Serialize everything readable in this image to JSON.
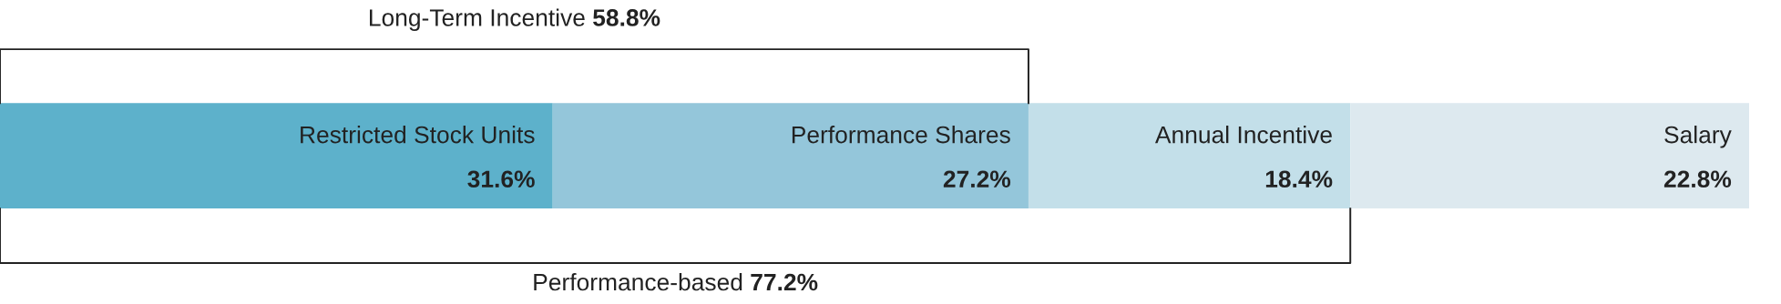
{
  "chart_data": {
    "type": "bar",
    "orientation": "horizontal",
    "stacked": true,
    "categories": [
      null
    ],
    "series": [
      {
        "name": "Restricted Stock Units",
        "color": "#5db1cb",
        "values": [
          31.6
        ],
        "value_labels": [
          "31.6%"
        ]
      },
      {
        "name": "Performance Shares",
        "color": "#94c6da",
        "values": [
          27.2
        ],
        "value_labels": [
          "27.2%"
        ]
      },
      {
        "name": "Annual Incentive",
        "color": "#c3dfe9",
        "values": [
          18.4
        ],
        "value_labels": [
          "18.4%"
        ]
      },
      {
        "name": "Salary",
        "color": "#dde9ef",
        "values": [
          22.8
        ],
        "value_labels": [
          "22.8%"
        ]
      }
    ],
    "annotations": [
      "Long-Term Incentive 58.8%",
      "Performance-based 77.2%"
    ]
  }
}
